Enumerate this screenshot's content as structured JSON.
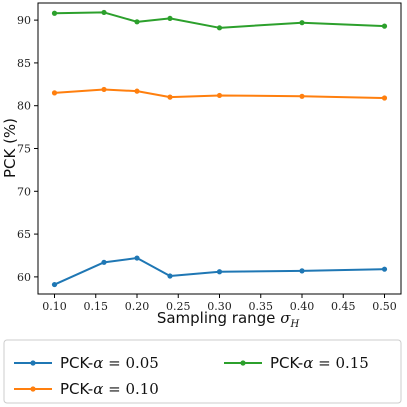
{
  "chart_data": {
    "type": "line",
    "title": "",
    "xlabel": "Sampling range σ_H",
    "xlabel_main": "Sampling range ",
    "xlabel_sym": "σ",
    "xlabel_sub": "H",
    "ylabel": "PCK (%)",
    "xlim": [
      0.08,
      0.52
    ],
    "ylim": [
      58,
      92
    ],
    "xticks": [
      0.1,
      0.15,
      0.2,
      0.25,
      0.3,
      0.35,
      0.4,
      0.45,
      0.5
    ],
    "xtick_labels": [
      "0.10",
      "0.15",
      "0.20",
      "0.25",
      "0.30",
      "0.35",
      "0.40",
      "0.45",
      "0.50"
    ],
    "yticks": [
      60,
      65,
      70,
      75,
      80,
      85,
      90
    ],
    "ytick_labels": [
      "60",
      "65",
      "70",
      "75",
      "80",
      "85",
      "90"
    ],
    "grid": false,
    "legend_position": "below",
    "x": [
      0.1,
      0.16,
      0.2,
      0.24,
      0.3,
      0.4,
      0.5
    ],
    "series": [
      {
        "name": "PCK-α = 0.05",
        "label_prefix": "PCK-",
        "label_sym": "α",
        "label_value": " = 0.05",
        "color": "#1f77b4",
        "values": [
          59.1,
          61.7,
          62.2,
          60.1,
          60.6,
          60.7,
          60.9
        ]
      },
      {
        "name": "PCK-α = 0.10",
        "label_prefix": "PCK-",
        "label_sym": "α",
        "label_value": " = 0.10",
        "color": "#ff7f0e",
        "values": [
          81.5,
          81.9,
          81.7,
          81.0,
          81.2,
          81.1,
          80.9
        ]
      },
      {
        "name": "PCK-α = 0.15",
        "label_prefix": "PCK-",
        "label_sym": "α",
        "label_value": " = 0.15",
        "color": "#2ca02c",
        "values": [
          90.8,
          90.9,
          89.8,
          90.2,
          89.1,
          89.7,
          89.3
        ]
      }
    ]
  }
}
